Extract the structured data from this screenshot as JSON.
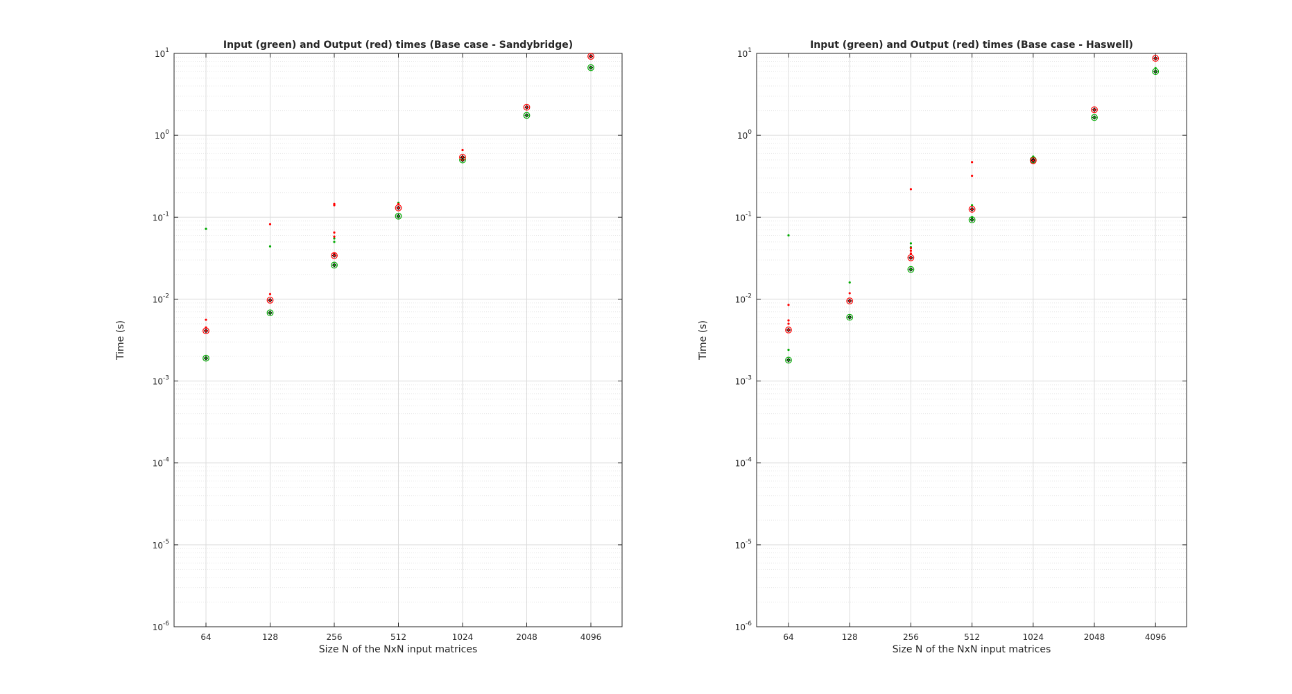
{
  "chart_data": [
    {
      "type": "scatter",
      "title": "Input (green) and Output (red) times (Base case - Sandybridge)",
      "xlabel": "Size N of the NxN input matrices",
      "ylabel": "Time (s)",
      "y_scale": "log",
      "ylim": [
        1e-06,
        10
      ],
      "categories": [
        "64",
        "128",
        "256",
        "512",
        "1024",
        "2048",
        "4096"
      ],
      "y_tick_labels": [
        {
          "base": "10",
          "exp": "-6"
        },
        {
          "base": "10",
          "exp": "-5"
        },
        {
          "base": "10",
          "exp": "-4"
        },
        {
          "base": "10",
          "exp": "-3"
        },
        {
          "base": "10",
          "exp": "-2"
        },
        {
          "base": "10",
          "exp": "-1"
        },
        {
          "base": "10",
          "exp": "0"
        },
        {
          "base": "10",
          "exp": "1"
        }
      ],
      "grid": true,
      "legend": "none",
      "series": [
        {
          "role": "input",
          "color": "#00aa00",
          "points": [
            [
              0,
              0.0019
            ],
            [
              0,
              0.072
            ],
            [
              1,
              0.0068
            ],
            [
              1,
              0.044
            ],
            [
              2,
              0.026
            ],
            [
              2,
              0.05
            ],
            [
              2,
              0.055
            ],
            [
              3,
              0.103
            ],
            [
              3,
              0.15
            ],
            [
              4,
              0.5
            ],
            [
              5,
              1.75
            ],
            [
              6,
              6.7
            ]
          ],
          "medians": [
            0.0019,
            0.0068,
            0.026,
            0.103,
            0.5,
            1.75,
            6.7
          ]
        },
        {
          "role": "output",
          "color": "#ff0000",
          "points": [
            [
              0,
              0.0041
            ],
            [
              0,
              0.0045
            ],
            [
              0,
              0.0056
            ],
            [
              1,
              0.0097
            ],
            [
              1,
              0.0115
            ],
            [
              1,
              0.082
            ],
            [
              2,
              0.034
            ],
            [
              2,
              0.036
            ],
            [
              2,
              0.058
            ],
            [
              2,
              0.065
            ],
            [
              2,
              0.14
            ],
            [
              2,
              0.145
            ],
            [
              3,
              0.13
            ],
            [
              3,
              0.145
            ],
            [
              4,
              0.54
            ],
            [
              4,
              0.66
            ],
            [
              5,
              2.2
            ],
            [
              6,
              9.2
            ]
          ],
          "medians": [
            0.0041,
            0.0097,
            0.034,
            0.13,
            0.54,
            2.2,
            9.2
          ]
        }
      ]
    },
    {
      "type": "scatter",
      "title": "Input (green) and Output (red) times (Base case - Haswell)",
      "xlabel": "Size N of the NxN input matrices",
      "ylabel": "Time (s)",
      "y_scale": "log",
      "ylim": [
        1e-06,
        10
      ],
      "categories": [
        "64",
        "128",
        "256",
        "512",
        "1024",
        "2048",
        "4096"
      ],
      "y_tick_labels": [
        {
          "base": "10",
          "exp": "-6"
        },
        {
          "base": "10",
          "exp": "-5"
        },
        {
          "base": "10",
          "exp": "-4"
        },
        {
          "base": "10",
          "exp": "-3"
        },
        {
          "base": "10",
          "exp": "-2"
        },
        {
          "base": "10",
          "exp": "-1"
        },
        {
          "base": "10",
          "exp": "0"
        },
        {
          "base": "10",
          "exp": "1"
        }
      ],
      "grid": true,
      "legend": "none",
      "series": [
        {
          "role": "input",
          "color": "#00aa00",
          "points": [
            [
              0,
              0.0018
            ],
            [
              0,
              0.0024
            ],
            [
              0,
              0.06
            ],
            [
              1,
              0.006
            ],
            [
              1,
              0.016
            ],
            [
              2,
              0.023
            ],
            [
              2,
              0.043
            ],
            [
              2,
              0.048
            ],
            [
              3,
              0.093
            ],
            [
              3,
              0.1
            ],
            [
              3,
              0.14
            ],
            [
              4,
              0.5
            ],
            [
              4,
              0.55
            ],
            [
              5,
              1.65
            ],
            [
              6,
              6.0
            ],
            [
              6,
              6.6
            ]
          ],
          "medians": [
            0.0018,
            0.006,
            0.023,
            0.093,
            0.5,
            1.65,
            6.0
          ]
        },
        {
          "role": "output",
          "color": "#ff0000",
          "points": [
            [
              0,
              0.0042
            ],
            [
              0,
              0.005
            ],
            [
              0,
              0.0055
            ],
            [
              0,
              0.0085
            ],
            [
              1,
              0.0095
            ],
            [
              1,
              0.0118
            ],
            [
              2,
              0.032
            ],
            [
              2,
              0.036
            ],
            [
              2,
              0.039
            ],
            [
              2,
              0.042
            ],
            [
              2,
              0.22
            ],
            [
              3,
              0.125
            ],
            [
              3,
              0.32
            ],
            [
              3,
              0.47
            ],
            [
              4,
              0.49
            ],
            [
              5,
              2.05
            ],
            [
              6,
              8.7
            ]
          ],
          "medians": [
            0.0042,
            0.0095,
            0.032,
            0.125,
            0.49,
            2.05,
            8.7
          ]
        }
      ]
    }
  ]
}
